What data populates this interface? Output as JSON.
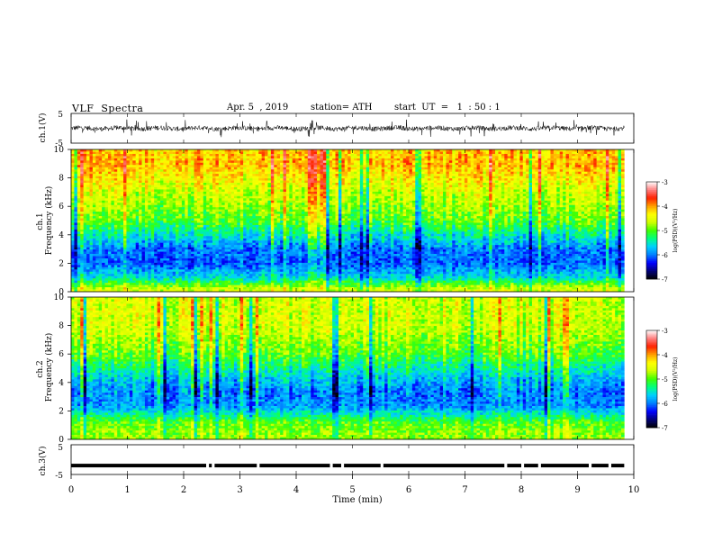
{
  "header": {
    "title": "VLF  Spectra",
    "date": "Apr. 5  , 2019",
    "station": "station= ATH",
    "start_ut": "start  UT  =   1  : 50 : 1"
  },
  "chart_data": [
    {
      "type": "line",
      "panel": "ch1-waveform",
      "ylabel": "ch.1(V)",
      "ylim": [
        -5,
        5
      ],
      "yticks": [
        "5",
        "-5"
      ],
      "xlim": [
        0,
        10
      ],
      "description_series": "dense VLF waveform, mostly within ±1.5 V with spikes to ±2.5 V",
      "data_extent_min": 9.83,
      "color": "#000000"
    },
    {
      "type": "heatmap",
      "panel": "ch1-spectrogram",
      "ylabel": "ch.1\nFrequency  (kHz)",
      "ylim": [
        0,
        10
      ],
      "yticks": [
        "0",
        "2",
        "4",
        "6",
        "8",
        "10"
      ],
      "xlim": [
        0,
        10
      ],
      "data_extent_min": 9.83,
      "colorbar": {
        "label": "log(PSD)(V²/Hz)",
        "range": [
          -7,
          -3
        ],
        "ticks": [
          "-3",
          "-4",
          "-5",
          "-6",
          "-7"
        ]
      },
      "typical_log_psd_by_freq_khz": [
        {
          "f": 0.2,
          "v": -4.6
        },
        {
          "f": 1.0,
          "v": -5.6
        },
        {
          "f": 2.0,
          "v": -6.1
        },
        {
          "f": 3.0,
          "v": -6.0
        },
        {
          "f": 3.8,
          "v": -5.6
        },
        {
          "f": 5.0,
          "v": -5.0
        },
        {
          "f": 7.0,
          "v": -4.6
        },
        {
          "f": 9.0,
          "v": -4.1
        },
        {
          "f": 10.0,
          "v": -4.2
        }
      ]
    },
    {
      "type": "heatmap",
      "panel": "ch2-spectrogram",
      "ylabel": "ch.2\nFrequency  (kHz)",
      "ylim": [
        0,
        10
      ],
      "yticks": [
        "0",
        "2",
        "4",
        "6",
        "8",
        "10"
      ],
      "xlim": [
        0,
        10
      ],
      "data_extent_min": 9.83,
      "colorbar": {
        "label": "log(PSD)(V²/Hz)",
        "range": [
          -7,
          -3
        ],
        "ticks": [
          "-3",
          "-4",
          "-5",
          "-6",
          "-7"
        ]
      },
      "typical_log_psd_by_freq_khz": [
        {
          "f": 0.3,
          "v": -4.8
        },
        {
          "f": 1.2,
          "v": -5.0
        },
        {
          "f": 2.3,
          "v": -5.9
        },
        {
          "f": 3.3,
          "v": -6.0
        },
        {
          "f": 4.3,
          "v": -5.7
        },
        {
          "f": 6.0,
          "v": -5.0
        },
        {
          "f": 8.0,
          "v": -4.6
        },
        {
          "f": 10.0,
          "v": -4.6
        }
      ]
    },
    {
      "type": "line",
      "panel": "ch3-waveform",
      "ylabel": "ch.3(V)",
      "ylim": [
        -5,
        5
      ],
      "yticks": [
        "5",
        "-5"
      ],
      "xlim": [
        0,
        10
      ],
      "data_extent_min": 9.83,
      "level_v": -2.0,
      "gaps_min": [
        2.4,
        2.5,
        3.3,
        4.6,
        4.8,
        5.5,
        7.7,
        8.0,
        8.3,
        9.2,
        9.55
      ],
      "color": "#000000"
    }
  ],
  "xaxis": {
    "label": "Time  (min)",
    "ticks": [
      "0",
      "1",
      "2",
      "3",
      "4",
      "5",
      "6",
      "7",
      "8",
      "9",
      "10"
    ]
  },
  "colormap": [
    "#000000",
    "#00007a",
    "#0000ff",
    "#0080ff",
    "#00d0ff",
    "#00ff80",
    "#40ff00",
    "#d0ff00",
    "#ffff00",
    "#ffa000",
    "#ff2000",
    "#ff8080",
    "#ffffff"
  ]
}
